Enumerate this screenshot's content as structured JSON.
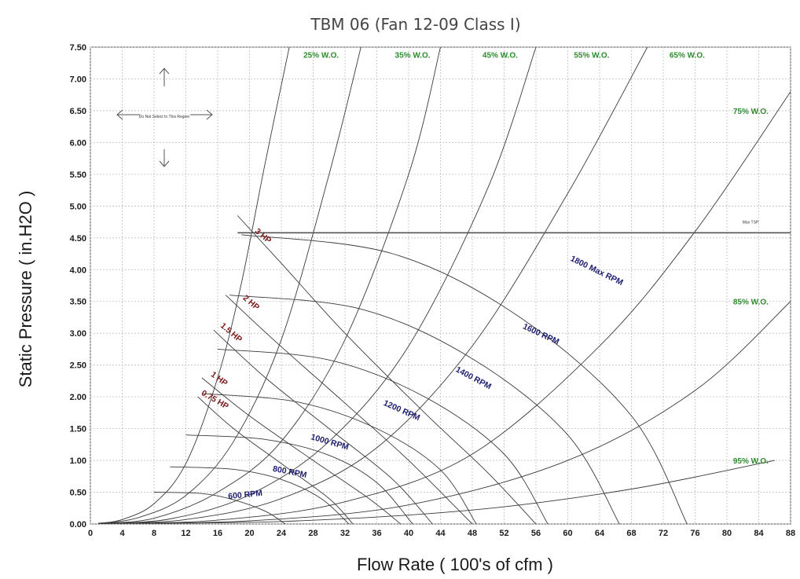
{
  "chart_data": {
    "type": "line",
    "title": "TBM 06 (Fan 12-09 Class I)",
    "xlabel": "Flow Rate ( 100's of cfm )",
    "ylabel": "Static Pressure ( in.H2O )",
    "xlim": [
      0,
      88
    ],
    "ylim": [
      0,
      7.5
    ],
    "x_ticks": [
      "0",
      "4",
      "8",
      "12",
      "16",
      "20",
      "24",
      "28",
      "32",
      "36",
      "40",
      "44",
      "48",
      "52",
      "56",
      "60",
      "64",
      "68",
      "72",
      "76",
      "80",
      "84",
      "88"
    ],
    "y_ticks": [
      "0.00",
      "0.50",
      "1.00",
      "1.50",
      "2.00",
      "2.50",
      "3.00",
      "3.50",
      "4.00",
      "4.50",
      "5.00",
      "5.50",
      "6.00",
      "6.50",
      "7.00",
      "7.50"
    ],
    "grid": true,
    "colors": {
      "wo": "#2e8b2e",
      "rpm": "#1c1c6e",
      "hp": "#7a1a1a",
      "curve": "#3a3a3a"
    },
    "max_tsp": {
      "value": 4.58,
      "label": "Max TSP"
    },
    "do_not_select_note": "Do Not Select In This Region",
    "wide_open_series": [
      {
        "name": "25% W.O.",
        "points": [
          [
            1,
            0.01
          ],
          [
            4,
            0.07
          ],
          [
            8,
            0.32
          ],
          [
            12,
            0.95
          ],
          [
            16,
            2.3
          ],
          [
            19,
            3.8
          ],
          [
            22,
            5.7
          ],
          [
            25,
            7.5
          ]
        ]
      },
      {
        "name": "35% W.O.",
        "points": [
          [
            1,
            0.01
          ],
          [
            6,
            0.1
          ],
          [
            12,
            0.45
          ],
          [
            18,
            1.3
          ],
          [
            24,
            2.9
          ],
          [
            30,
            5.5
          ],
          [
            34,
            7.5
          ]
        ]
      },
      {
        "name": "45% W.O.",
        "points": [
          [
            1,
            0.01
          ],
          [
            8,
            0.09
          ],
          [
            16,
            0.5
          ],
          [
            24,
            1.3
          ],
          [
            32,
            2.9
          ],
          [
            40,
            5.5
          ],
          [
            44,
            7.5
          ]
        ]
      },
      {
        "name": "55% W.O.",
        "points": [
          [
            1,
            0.01
          ],
          [
            10,
            0.08
          ],
          [
            20,
            0.46
          ],
          [
            30,
            1.3
          ],
          [
            40,
            2.8
          ],
          [
            50,
            5.3
          ],
          [
            56,
            7.5
          ]
        ]
      },
      {
        "name": "65% W.O.",
        "points": [
          [
            1,
            0.01
          ],
          [
            12,
            0.07
          ],
          [
            24,
            0.4
          ],
          [
            36,
            1.2
          ],
          [
            48,
            2.8
          ],
          [
            60,
            5.2
          ],
          [
            70,
            7.5
          ]
        ]
      },
      {
        "name": "75% W.O.",
        "points": [
          [
            1,
            0.01
          ],
          [
            16,
            0.06
          ],
          [
            32,
            0.35
          ],
          [
            48,
            1.1
          ],
          [
            64,
            2.8
          ],
          [
            76,
            4.6
          ],
          [
            88,
            6.8
          ]
        ]
      },
      {
        "name": "85% W.O.",
        "points": [
          [
            1,
            0.01
          ],
          [
            20,
            0.05
          ],
          [
            40,
            0.3
          ],
          [
            60,
            1.0
          ],
          [
            76,
            2.1
          ],
          [
            88,
            3.5
          ]
        ]
      },
      {
        "name": "95% W.O.",
        "points": [
          [
            1,
            0.01
          ],
          [
            24,
            0.04
          ],
          [
            48,
            0.22
          ],
          [
            68,
            0.55
          ],
          [
            86,
            1.0
          ]
        ]
      }
    ],
    "rpm_series": [
      {
        "name": "600 RPM",
        "points": [
          [
            8,
            0.5
          ],
          [
            14,
            0.48
          ],
          [
            18,
            0.38
          ],
          [
            22,
            0.2
          ],
          [
            24.5,
            0.0
          ]
        ]
      },
      {
        "name": "800 RPM",
        "points": [
          [
            10,
            0.9
          ],
          [
            18,
            0.86
          ],
          [
            24,
            0.7
          ],
          [
            29,
            0.4
          ],
          [
            32.5,
            0.0
          ]
        ]
      },
      {
        "name": "1000 RPM",
        "points": [
          [
            12,
            1.4
          ],
          [
            22,
            1.33
          ],
          [
            30,
            1.08
          ],
          [
            36,
            0.65
          ],
          [
            40.5,
            0.0
          ]
        ]
      },
      {
        "name": "1200 RPM",
        "points": [
          [
            14,
            2.05
          ],
          [
            26,
            1.92
          ],
          [
            36,
            1.5
          ],
          [
            44,
            0.85
          ],
          [
            48.5,
            0.0
          ]
        ]
      },
      {
        "name": "1400 RPM",
        "points": [
          [
            16,
            2.75
          ],
          [
            30,
            2.58
          ],
          [
            42,
            2.0
          ],
          [
            52,
            1.1
          ],
          [
            57.5,
            0.0
          ]
        ]
      },
      {
        "name": "1600 RPM",
        "points": [
          [
            17.5,
            3.6
          ],
          [
            34,
            3.38
          ],
          [
            48,
            2.6
          ],
          [
            60,
            1.4
          ],
          [
            66.5,
            0.0
          ]
        ]
      },
      {
        "name": "1800 Max RPM",
        "points": [
          [
            19,
            4.55
          ],
          [
            38,
            4.25
          ],
          [
            54,
            3.25
          ],
          [
            68,
            1.7
          ],
          [
            75,
            0.0
          ]
        ]
      }
    ],
    "hp_series": [
      {
        "name": "0.75 HP",
        "points": [
          [
            13.5,
            2.0
          ],
          [
            18,
            1.5
          ],
          [
            24,
            0.95
          ],
          [
            30,
            0.4
          ],
          [
            33,
            0.0
          ]
        ]
      },
      {
        "name": "1 HP",
        "points": [
          [
            14,
            2.3
          ],
          [
            20,
            1.7
          ],
          [
            28,
            1.0
          ],
          [
            35,
            0.4
          ],
          [
            39,
            0.0
          ]
        ]
      },
      {
        "name": "1.5 HP",
        "points": [
          [
            15.5,
            3.05
          ],
          [
            22,
            2.3
          ],
          [
            30,
            1.5
          ],
          [
            38,
            0.7
          ],
          [
            43,
            0.0
          ]
        ]
      },
      {
        "name": "2 HP",
        "points": [
          [
            17,
            3.6
          ],
          [
            23,
            2.9
          ],
          [
            32,
            1.9
          ],
          [
            40,
            1.0
          ],
          [
            48,
            0.0
          ]
        ]
      },
      {
        "name": "3 HP",
        "points": [
          [
            18.5,
            4.85
          ],
          [
            24,
            4.1
          ],
          [
            32,
            3.0
          ],
          [
            42,
            1.75
          ],
          [
            50,
            0.8
          ],
          [
            56,
            0.0
          ]
        ]
      }
    ]
  }
}
